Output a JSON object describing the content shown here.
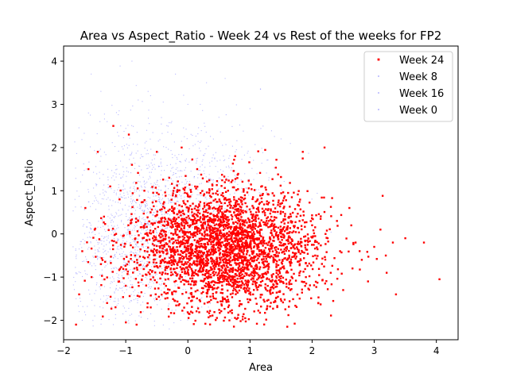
{
  "chart_data": {
    "type": "scatter",
    "title": "Area vs Aspect_Ratio - Week 24 vs Rest of the weeks for FP2",
    "xlabel": "Area",
    "ylabel": "Aspect_Ratio",
    "xlim": [
      -2.0,
      4.35
    ],
    "ylim": [
      -2.45,
      4.35
    ],
    "xticks": [
      -2,
      -1,
      0,
      1,
      2,
      3,
      4
    ],
    "yticks": [
      -2,
      -1,
      0,
      1,
      2,
      3,
      4
    ],
    "grid": false,
    "legend_position": "top-right",
    "legend": [
      "Week 24",
      "Week 8",
      "Week 16",
      "Week 0"
    ],
    "series": [
      {
        "name": "Week 24",
        "color": "#ff0000",
        "marker_size": "medium",
        "points": [
          [
            -1.8,
            -2.1
          ],
          [
            -1.75,
            -1.4
          ],
          [
            -1.7,
            -0.4
          ],
          [
            -1.65,
            0.6
          ],
          [
            -1.6,
            1.5
          ],
          [
            -1.55,
            -1.0
          ],
          [
            -1.5,
            0.1
          ],
          [
            -1.45,
            1.9
          ],
          [
            -1.4,
            -0.7
          ],
          [
            -1.35,
            0.4
          ],
          [
            -1.3,
            -1.6
          ],
          [
            -1.25,
            1.1
          ],
          [
            -1.2,
            2.5
          ],
          [
            -1.15,
            -0.2
          ],
          [
            -1.1,
            0.8
          ],
          [
            -1.0,
            -1.2
          ],
          [
            -0.95,
            2.3
          ],
          [
            -0.9,
            1.6
          ],
          [
            -0.85,
            -0.5
          ],
          [
            -0.8,
            0.3
          ],
          [
            -0.7,
            1.0
          ],
          [
            -0.65,
            -1.7
          ],
          [
            -0.6,
            0.5
          ],
          [
            -0.5,
            1.9
          ],
          [
            -0.45,
            -0.9
          ],
          [
            -0.4,
            0.2
          ],
          [
            -0.3,
            1.3
          ],
          [
            -0.25,
            -1.4
          ],
          [
            -0.2,
            0.7
          ],
          [
            -0.1,
            2.0
          ],
          [
            -0.05,
            -0.3
          ],
          [
            0.0,
            0.9
          ],
          [
            0.05,
            -1.8
          ],
          [
            0.1,
            0.4
          ],
          [
            0.15,
            1.5
          ],
          [
            0.2,
            -0.6
          ],
          [
            0.25,
            -1.1
          ],
          [
            0.3,
            0.1
          ],
          [
            0.35,
            1.0
          ],
          [
            0.4,
            -0.4
          ],
          [
            0.45,
            -1.5
          ],
          [
            0.5,
            0.6
          ],
          [
            0.55,
            -0.2
          ],
          [
            0.6,
            -0.9
          ],
          [
            0.65,
            0.3
          ],
          [
            0.7,
            1.2
          ],
          [
            0.75,
            -0.5
          ],
          [
            0.8,
            -1.2
          ],
          [
            0.85,
            0.0
          ],
          [
            0.9,
            0.8
          ],
          [
            0.95,
            -0.7
          ],
          [
            1.0,
            -0.1
          ],
          [
            1.05,
            -1.4
          ],
          [
            1.1,
            0.5
          ],
          [
            1.15,
            -0.4
          ],
          [
            1.2,
            0.9
          ],
          [
            1.25,
            -0.9
          ],
          [
            1.3,
            -0.2
          ],
          [
            1.35,
            0.3
          ],
          [
            1.4,
            -1.1
          ],
          [
            1.45,
            -0.5
          ],
          [
            1.5,
            0.7
          ],
          [
            1.55,
            -0.8
          ],
          [
            1.6,
            0.1
          ],
          [
            1.65,
            -1.3
          ],
          [
            1.7,
            -0.3
          ],
          [
            1.75,
            0.4
          ],
          [
            1.8,
            -0.7
          ],
          [
            1.85,
            1.9
          ],
          [
            1.9,
            -1.0
          ],
          [
            2.0,
            0.2
          ],
          [
            2.05,
            -0.5
          ],
          [
            2.1,
            -1.6
          ],
          [
            2.2,
            2.0
          ],
          [
            2.25,
            -0.1
          ],
          [
            2.3,
            -0.9
          ],
          [
            2.4,
            0.3
          ],
          [
            2.45,
            -0.4
          ],
          [
            2.5,
            -1.3
          ],
          [
            2.6,
            0.6
          ],
          [
            2.65,
            -0.8
          ],
          [
            2.7,
            -0.2
          ],
          [
            2.8,
            -0.6
          ],
          [
            2.9,
            -1.1
          ],
          [
            3.0,
            -0.3
          ],
          [
            3.1,
            0.1
          ],
          [
            3.2,
            -0.9
          ],
          [
            3.3,
            -0.2
          ],
          [
            3.35,
            -1.4
          ],
          [
            3.5,
            -0.1
          ],
          [
            3.8,
            -0.2
          ],
          [
            4.05,
            -1.05
          ]
        ],
        "cluster": {
          "mean": [
            0.6,
            -0.3
          ],
          "std": [
            0.75,
            0.7
          ],
          "count": 3000
        }
      },
      {
        "name": "Week 8",
        "color": "#8080ff",
        "marker_size": "tiny",
        "points": [
          [
            -1.8,
            -1.5
          ],
          [
            -1.6,
            2.8
          ],
          [
            -1.4,
            3.3
          ],
          [
            -1.2,
            -2.1
          ],
          [
            -0.9,
            4.0
          ],
          [
            -0.6,
            3.2
          ],
          [
            -0.3,
            -2.2
          ],
          [
            0.0,
            3.0
          ],
          [
            0.3,
            3.5
          ],
          [
            0.6,
            3.6
          ],
          [
            1.0,
            2.9
          ],
          [
            1.5,
            2.2
          ]
        ],
        "cluster": {
          "mean": [
            -0.6,
            0.4
          ],
          "std": [
            0.7,
            1.0
          ],
          "count": 700
        }
      },
      {
        "name": "Week 16",
        "color": "#8080ff",
        "marker_size": "tiny",
        "points": [
          [
            -1.7,
            -2.0
          ],
          [
            -1.3,
            2.6
          ],
          [
            -0.8,
            3.1
          ],
          [
            -0.2,
            3.7
          ],
          [
            0.2,
            3.0
          ],
          [
            0.5,
            2.7
          ]
        ],
        "cluster": {
          "mean": [
            -0.2,
            0.9
          ],
          "std": [
            0.75,
            0.9
          ],
          "count": 650
        }
      },
      {
        "name": "Week 0",
        "color": "#8080ff",
        "marker_size": "tiny",
        "points": [
          [
            -1.75,
            -1.8
          ],
          [
            -1.5,
            -1.9
          ],
          [
            -1.0,
            -2.0
          ],
          [
            0.8,
            -1.9
          ]
        ],
        "cluster": {
          "mean": [
            -1.0,
            -0.6
          ],
          "std": [
            0.5,
            0.7
          ],
          "count": 500
        }
      }
    ]
  }
}
